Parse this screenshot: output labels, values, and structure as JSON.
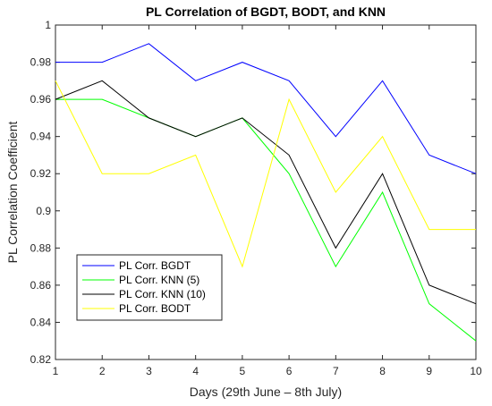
{
  "chart_data": {
    "type": "line",
    "title": "PL Correlation of BGDT, BODT, and KNN",
    "xlabel": "Days (29th June – 8th July)",
    "ylabel": "PL Correlation Coefficient",
    "xlim": [
      1,
      10
    ],
    "ylim": [
      0.82,
      1
    ],
    "x_ticks": [
      "1",
      "2",
      "3",
      "4",
      "5",
      "6",
      "7",
      "8",
      "9",
      "10"
    ],
    "y_ticks": [
      "0.82",
      "0.84",
      "0.86",
      "0.88",
      "0.9",
      "0.92",
      "0.94",
      "0.96",
      "0.98",
      "1"
    ],
    "grid": false,
    "legend_position": "bottom-left",
    "x": [
      1,
      2,
      3,
      4,
      5,
      6,
      7,
      8,
      9,
      10
    ],
    "series": [
      {
        "name": "PL Corr. BGDT",
        "color": "#0000ff",
        "values": [
          0.98,
          0.98,
          0.99,
          0.97,
          0.98,
          0.97,
          0.94,
          0.97,
          0.93,
          0.92
        ]
      },
      {
        "name": "PL Corr. KNN (5)",
        "color": "#00ff00",
        "values": [
          0.96,
          0.96,
          0.95,
          0.94,
          0.95,
          0.92,
          0.87,
          0.91,
          0.85,
          0.83
        ]
      },
      {
        "name": "PL Corr. KNN (10)",
        "color": "#000000",
        "values": [
          0.96,
          0.97,
          0.95,
          0.94,
          0.95,
          0.93,
          0.88,
          0.92,
          0.86,
          0.85
        ]
      },
      {
        "name": "PL Corr. BODT",
        "color": "#ffff00",
        "values": [
          0.97,
          0.92,
          0.92,
          0.93,
          0.87,
          0.96,
          0.91,
          0.94,
          0.89,
          0.89
        ]
      }
    ]
  }
}
